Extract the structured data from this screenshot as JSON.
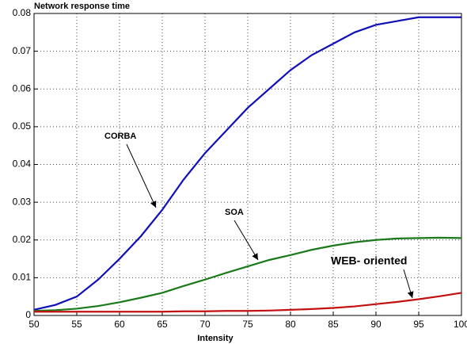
{
  "chart_data": {
    "type": "line",
    "title": "Network response time",
    "xlabel": "Intensity",
    "x": [
      50,
      52.5,
      55,
      57.5,
      60,
      62.5,
      65,
      67.5,
      70,
      72.5,
      75,
      77.5,
      80,
      82.5,
      85,
      87.5,
      90,
      92.5,
      95,
      97.5,
      100
    ],
    "series": [
      {
        "name": "CORBA",
        "color": "#1010b8",
        "values": [
          0.0015,
          0.0028,
          0.005,
          0.0095,
          0.015,
          0.021,
          0.028,
          0.036,
          0.043,
          0.049,
          0.055,
          0.06,
          0.065,
          0.069,
          0.072,
          0.075,
          0.077,
          0.078,
          0.079,
          0.079,
          0.079
        ]
      },
      {
        "name": "SOA",
        "color": "#1a7a1a",
        "values": [
          0.0012,
          0.0014,
          0.0018,
          0.0025,
          0.0035,
          0.0047,
          0.006,
          0.0078,
          0.0095,
          0.0113,
          0.013,
          0.0147,
          0.016,
          0.0174,
          0.0185,
          0.0194,
          0.02,
          0.0204,
          0.0205,
          0.0206,
          0.0205
        ]
      },
      {
        "name": "WEB- oriented",
        "color": "#c41010",
        "values": [
          0.001,
          0.001,
          0.001,
          0.001,
          0.001,
          0.001,
          0.001,
          0.0011,
          0.0011,
          0.0012,
          0.0012,
          0.0013,
          0.0015,
          0.0017,
          0.002,
          0.0024,
          0.003,
          0.0036,
          0.0043,
          0.0051,
          0.006
        ]
      }
    ],
    "xlim": [
      50,
      100
    ],
    "xticks": [
      50,
      55,
      60,
      65,
      70,
      75,
      80,
      85,
      90,
      95,
      100
    ],
    "ylim": [
      0,
      0.08
    ],
    "yticks": [
      0,
      0.01,
      0.02,
      0.03,
      0.04,
      0.05,
      0.06,
      0.07,
      0.08
    ],
    "grid": true
  }
}
